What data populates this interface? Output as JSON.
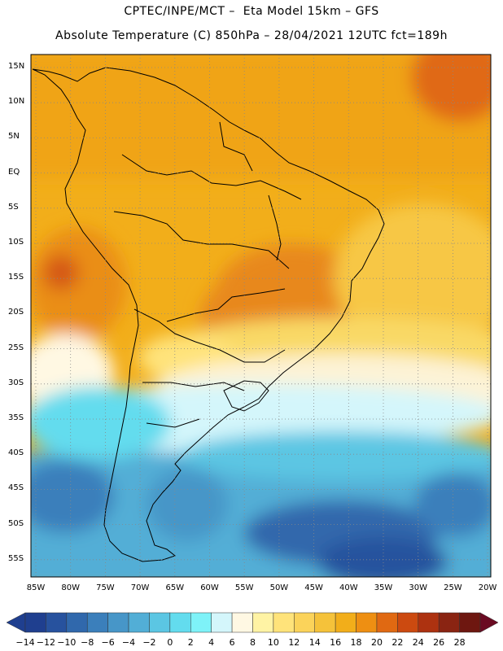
{
  "header": {
    "line1": "CPTEC/INPE/MCT –  Eta Model 15km – GFS",
    "line2": "Absolute Temperature (C) 850hPa – 28/04/2021 12UTC fct=189h"
  },
  "map": {
    "lat_labels": [
      "15N",
      "10N",
      "5N",
      "EQ",
      "5S",
      "10S",
      "15S",
      "20S",
      "25S",
      "30S",
      "35S",
      "40S",
      "45S",
      "50S",
      "55S"
    ],
    "lon_labels": [
      "85W",
      "80W",
      "75W",
      "70W",
      "65W",
      "60W",
      "55W",
      "50W",
      "45W",
      "40W",
      "35W",
      "30W",
      "25W",
      "20W"
    ],
    "grid": "dotted"
  },
  "colorbar": {
    "labels": [
      "-14",
      "-12",
      "-10",
      "-8",
      "-6",
      "-4",
      "-2",
      "0",
      "2",
      "4",
      "6",
      "8",
      "10",
      "12",
      "14",
      "16",
      "18",
      "20",
      "22",
      "24",
      "26",
      "28"
    ],
    "colors": [
      "#1f3f8f",
      "#27529e",
      "#3068ac",
      "#3b7fbb",
      "#4796c8",
      "#52aed6",
      "#5bc6e3",
      "#63dcee",
      "#7ef2f8",
      "#d4f6fb",
      "#fff8e3",
      "#fff3a4",
      "#ffe37a",
      "#fbd35a",
      "#f5c23a",
      "#f2ae1a",
      "#ee8f12",
      "#e06912",
      "#cc4a10",
      "#ad3210",
      "#8a2412",
      "#6e1710"
    ]
  }
}
